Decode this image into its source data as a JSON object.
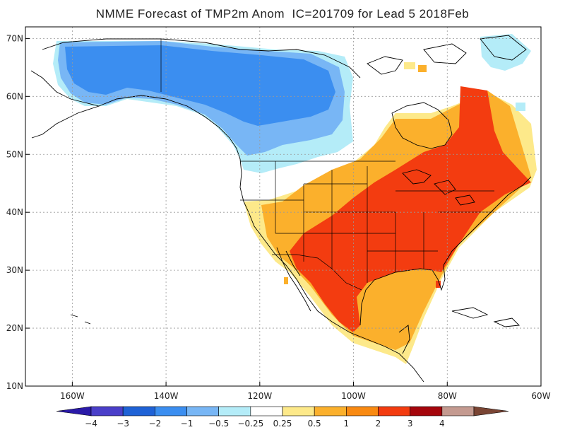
{
  "title": "NMME Forecast of TMP2m Anom  IC=201709 for Lead 5 2018Feb",
  "map": {
    "lon_range": [
      -170,
      -60
    ],
    "lat_range": [
      10,
      72
    ],
    "lat_ticks": [
      "10N",
      "20N",
      "30N",
      "40N",
      "50N",
      "60N",
      "70N"
    ],
    "lon_ticks": [
      "160W",
      "140W",
      "120W",
      "100W",
      "80W",
      "60W"
    ],
    "grid": true
  },
  "colorbar": {
    "colors": [
      "#2a1aa8",
      "#4a3fc9",
      "#1f62d6",
      "#3b8ef0",
      "#78b6f5",
      "#b4ecf8",
      "#ffffff",
      "#fde98a",
      "#fbb02c",
      "#f98a12",
      "#f33c10",
      "#a5060c",
      "#c49a90",
      "#7a4534"
    ],
    "labels": [
      "−4",
      "−3",
      "−2",
      "−1",
      "−0.5",
      "−0.25",
      "0.25",
      "0.5",
      "1",
      "2",
      "3",
      "4"
    ]
  }
}
